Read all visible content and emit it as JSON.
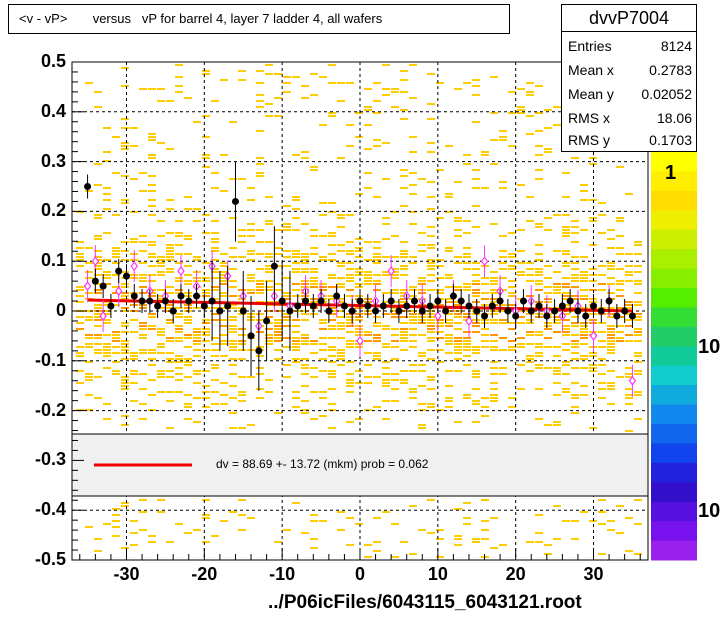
{
  "title": "<v - vP>       versus   vP for barrel 4, layer 7 ladder 4, all wafers",
  "stats": {
    "name": "dvvP7004",
    "rows": [
      {
        "label": "Entries",
        "value": "8124"
      },
      {
        "label": "Mean x",
        "value": "0.2783"
      },
      {
        "label": "Mean y",
        "value": "0.02052"
      },
      {
        "label": "RMS x",
        "value": "18.06"
      },
      {
        "label": "RMS y",
        "value": "0.1703"
      }
    ]
  },
  "legend": {
    "fit_text": "dv =    88.69 +- 13.72 (mkm) prob = 0.062",
    "fit_color": "#ee0000"
  },
  "footer": "../P06icFiles/6043115_6043121.root",
  "colors": {
    "profile_marker": "#000000",
    "open_marker": "#ff33ff",
    "fit_line": "#ee0000",
    "heat_low": "#ffcc00",
    "heat_mid": "#ff9900"
  },
  "chart_data": {
    "type": "heatmap",
    "title": "<v - vP>       versus   vP for barrel 4, layer 7 ladder 4, all wafers",
    "xlabel": "",
    "ylabel": "",
    "xlim": [
      -37,
      37
    ],
    "ylim": [
      -0.5,
      0.5
    ],
    "x_ticks": [
      "-30",
      "-20",
      "-10",
      "0",
      "10",
      "20",
      "30"
    ],
    "y_ticks": [
      "0.5",
      "0.4",
      "0.3",
      "0.2",
      "0.1",
      "0",
      "-0.1",
      "-0.2",
      "-0.3",
      "-0.4",
      "-0.5"
    ],
    "z_scale": "log",
    "z_ticks": [
      "1",
      "10",
      "10"
    ],
    "grid": true,
    "fit": {
      "x": [
        -35,
        35
      ],
      "y": [
        0.022,
        0.0
      ]
    },
    "profile_filled": {
      "x": [
        -35,
        -34,
        -33,
        -32,
        -31,
        -30,
        -29,
        -28,
        -27,
        -26,
        -25,
        -24,
        -23,
        -22,
        -21,
        -20,
        -19,
        -18,
        -17,
        -16,
        -15,
        -14,
        -13,
        -12,
        -11,
        -10,
        -9,
        -8,
        -7,
        -6,
        -5,
        -4,
        -3,
        -2,
        -1,
        0,
        1,
        2,
        3,
        4,
        5,
        6,
        7,
        8,
        9,
        10,
        11,
        12,
        13,
        14,
        15,
        16,
        17,
        18,
        19,
        20,
        21,
        22,
        23,
        24,
        25,
        26,
        27,
        28,
        29,
        30,
        31,
        32,
        33,
        34,
        35
      ],
      "y": [
        0.25,
        0.06,
        0.05,
        0.01,
        0.08,
        0.07,
        0.03,
        0.02,
        0.02,
        0.01,
        0.02,
        0.0,
        0.03,
        0.02,
        0.03,
        0.01,
        0.02,
        0.0,
        0.01,
        0.22,
        0.0,
        -0.05,
        -0.08,
        -0.02,
        0.09,
        0.02,
        0.0,
        0.01,
        0.02,
        0.01,
        0.02,
        0.0,
        0.03,
        0.01,
        0.0,
        0.02,
        0.01,
        0.0,
        0.01,
        0.02,
        0.0,
        0.01,
        0.02,
        0.0,
        0.01,
        0.02,
        0.0,
        0.03,
        0.02,
        0.01,
        0.0,
        -0.01,
        0.01,
        0.02,
        0.0,
        -0.01,
        0.02,
        0.0,
        0.01,
        -0.01,
        0.0,
        0.01,
        0.02,
        0.0,
        -0.01,
        0.01,
        0.0,
        0.02,
        -0.01,
        0.0,
        -0.01
      ]
    },
    "profile_open": {
      "x": [
        -35,
        -34,
        -33,
        -31,
        -29,
        -27,
        -25,
        -23,
        -21,
        -19,
        -17,
        -15,
        -13,
        -11,
        -9,
        -7,
        -5,
        -3,
        -1,
        0,
        2,
        4,
        6,
        8,
        10,
        12,
        14,
        16,
        18,
        20,
        22,
        24,
        26,
        28,
        30,
        32,
        35
      ],
      "y": [
        0.05,
        0.1,
        -0.01,
        0.04,
        0.09,
        0.04,
        0.03,
        0.08,
        0.05,
        0.09,
        0.07,
        0.03,
        -0.03,
        0.03,
        0.01,
        0.04,
        0.03,
        0.02,
        0.0,
        -0.06,
        0.02,
        0.08,
        0.03,
        0.02,
        -0.01,
        0.03,
        -0.02,
        0.1,
        0.04,
        0.0,
        0.02,
        0.0,
        -0.01,
        0.01,
        -0.05,
        0.02,
        -0.14
      ]
    }
  }
}
